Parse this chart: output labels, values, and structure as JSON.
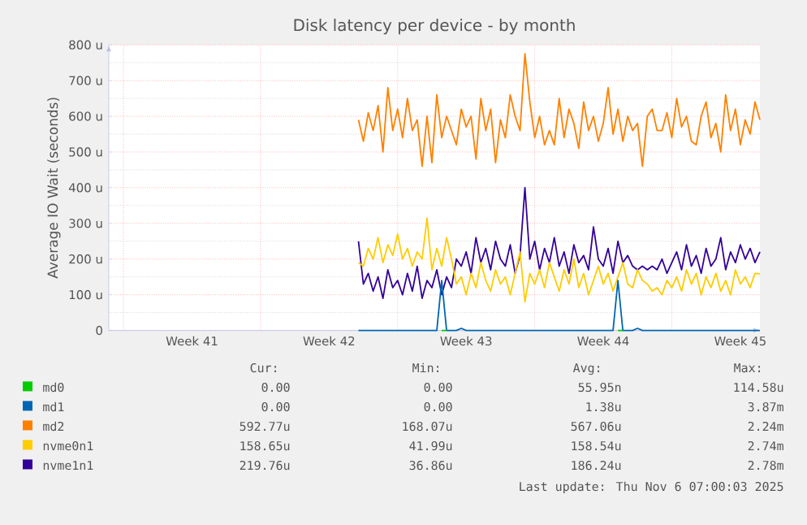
{
  "chart_data": {
    "type": "line",
    "title": "Disk latency per device - by month",
    "ylabel": "Average IO Wait (seconds)",
    "ylim": [
      0,
      800
    ],
    "yticks": [
      0,
      {
        "value": 100,
        "label": "100 u"
      },
      {
        "value": 200,
        "label": "200 u"
      },
      {
        "value": 300,
        "label": "300 u"
      },
      {
        "value": 400,
        "label": "400 u"
      },
      {
        "value": 500,
        "label": "500 u"
      },
      {
        "value": 600,
        "label": "600 u"
      },
      {
        "value": 700,
        "label": "700 u"
      },
      {
        "value": 800,
        "label": "800 u"
      }
    ],
    "grid": true,
    "legend": "bottom",
    "categories": [
      null,
      null,
      null,
      null,
      null,
      null,
      null,
      null,
      null,
      null,
      null,
      null,
      null,
      null,
      null,
      null,
      null,
      "Week 41",
      null,
      null,
      null,
      null,
      null,
      null,
      null,
      null,
      null,
      null,
      null,
      null,
      null,
      null,
      null,
      null,
      null,
      null,
      null,
      null,
      null,
      null,
      null,
      null,
      null,
      null,
      null,
      "Week 42",
      null,
      null,
      null,
      null,
      null,
      null,
      null,
      null,
      null,
      null,
      null,
      null,
      null,
      null,
      null,
      null,
      null,
      null,
      null,
      null,
      null,
      null,
      null,
      null,
      null,
      null,
      null,
      "Week 43",
      null,
      null,
      null,
      null,
      null,
      null,
      null,
      null,
      null,
      null,
      null,
      null,
      null,
      null,
      null,
      null,
      null,
      null,
      null,
      null,
      null,
      null,
      null,
      null,
      null,
      null,
      null,
      "Week 44",
      null,
      null,
      null,
      null,
      null,
      null,
      null,
      null,
      null,
      null,
      null,
      null,
      null,
      null,
      null,
      null,
      null,
      null,
      null,
      null,
      null,
      null,
      null,
      null,
      null,
      null,
      null,
      "Week 45",
      null,
      null,
      null,
      null
    ],
    "series": [
      {
        "name": "md0",
        "color": "#00cc00",
        "values": [
          null,
          null,
          null,
          null,
          null,
          null,
          null,
          null,
          null,
          null,
          null,
          null,
          null,
          null,
          null,
          null,
          null,
          null,
          null,
          null,
          null,
          null,
          null,
          null,
          null,
          null,
          null,
          null,
          null,
          null,
          null,
          null,
          null,
          null,
          null,
          null,
          null,
          null,
          null,
          null,
          null,
          null,
          null,
          null,
          null,
          null,
          null,
          null,
          null,
          null,
          null,
          null,
          null,
          null,
          null,
          null,
          null,
          null,
          null,
          null,
          null,
          null,
          null,
          null,
          null,
          null,
          null,
          null,
          0,
          0,
          null,
          null,
          null,
          null,
          null,
          null,
          null,
          null,
          null,
          null,
          null,
          null,
          null,
          null,
          null,
          null,
          null,
          null,
          null,
          null,
          null,
          null,
          null,
          null,
          null,
          null,
          null,
          null,
          null,
          null,
          null,
          null,
          null,
          null,
          0,
          0,
          null,
          null,
          null,
          null,
          null,
          null,
          null,
          null,
          null,
          null,
          null,
          null,
          null,
          null,
          null,
          null,
          null,
          null,
          null,
          null,
          null,
          null,
          null,
          null,
          null,
          null,
          null,
          null
        ]
      },
      {
        "name": "md1",
        "color": "#0066b3",
        "values": [
          null,
          null,
          null,
          null,
          null,
          null,
          null,
          null,
          null,
          null,
          null,
          null,
          null,
          null,
          null,
          null,
          null,
          null,
          null,
          null,
          null,
          null,
          null,
          null,
          null,
          null,
          null,
          null,
          null,
          null,
          null,
          null,
          null,
          null,
          null,
          null,
          null,
          null,
          null,
          null,
          null,
          null,
          null,
          null,
          null,
          null,
          null,
          null,
          null,
          null,
          null,
          0,
          0,
          0,
          0,
          0,
          0,
          0,
          0,
          0,
          0,
          0,
          0,
          0,
          0,
          0,
          0,
          0,
          140,
          0,
          0,
          0,
          6,
          0,
          0,
          0,
          0,
          0,
          0,
          0,
          0,
          0,
          0,
          0,
          0,
          0,
          0,
          0,
          0,
          0,
          0,
          0,
          0,
          0,
          0,
          0,
          0,
          0,
          0,
          0,
          0,
          0,
          0,
          0,
          140,
          0,
          0,
          0,
          6,
          0,
          0,
          0,
          0,
          0,
          0,
          0,
          0,
          0,
          0,
          0,
          0,
          0,
          0,
          0,
          0,
          0,
          0,
          0,
          0,
          0,
          0,
          0,
          0,
          0
        ]
      },
      {
        "name": "md2",
        "color": "#ff8000",
        "values": [
          null,
          null,
          null,
          null,
          null,
          null,
          null,
          null,
          null,
          null,
          null,
          null,
          null,
          null,
          null,
          null,
          null,
          null,
          null,
          null,
          null,
          null,
          null,
          null,
          null,
          null,
          null,
          null,
          null,
          null,
          null,
          null,
          null,
          null,
          null,
          null,
          null,
          null,
          null,
          null,
          null,
          null,
          null,
          null,
          null,
          null,
          null,
          null,
          null,
          null,
          null,
          590,
          530,
          610,
          560,
          630,
          500,
          680,
          560,
          620,
          540,
          650,
          560,
          590,
          460,
          600,
          470,
          660,
          540,
          600,
          560,
          520,
          620,
          570,
          600,
          480,
          650,
          560,
          620,
          470,
          590,
          540,
          660,
          600,
          560,
          775,
          640,
          540,
          600,
          520,
          560,
          520,
          650,
          540,
          620,
          580,
          510,
          640,
          560,
          600,
          530,
          580,
          680,
          550,
          620,
          530,
          600,
          560,
          580,
          460,
          600,
          620,
          560,
          560,
          610,
          540,
          650,
          570,
          600,
          530,
          520,
          600,
          640,
          540,
          580,
          500,
          660,
          560,
          620,
          520,
          590,
          550,
          640,
          590
        ]
      },
      {
        "name": "nvme0n1",
        "color": "#ffcc00",
        "values": [
          null,
          null,
          null,
          null,
          null,
          null,
          null,
          null,
          null,
          null,
          null,
          null,
          null,
          null,
          null,
          null,
          null,
          null,
          null,
          null,
          null,
          null,
          null,
          null,
          null,
          null,
          null,
          null,
          null,
          null,
          null,
          null,
          null,
          null,
          null,
          null,
          null,
          null,
          null,
          null,
          null,
          null,
          null,
          null,
          null,
          null,
          null,
          null,
          null,
          null,
          null,
          190,
          180,
          230,
          200,
          260,
          190,
          240,
          210,
          270,
          200,
          230,
          180,
          220,
          200,
          315,
          170,
          230,
          180,
          260,
          200,
          130,
          150,
          100,
          160,
          120,
          190,
          140,
          110,
          170,
          130,
          150,
          100,
          160,
          220,
          80,
          160,
          130,
          170,
          120,
          190,
          150,
          110,
          170,
          130,
          200,
          120,
          160,
          100,
          140,
          180,
          130,
          160,
          110,
          150,
          190,
          130,
          120,
          170,
          140,
          130,
          110,
          120,
          100,
          140,
          120,
          150,
          110,
          170,
          130,
          160,
          100,
          150,
          120,
          160,
          110,
          140,
          100,
          170,
          130,
          150,
          120,
          160,
          158
        ]
      },
      {
        "name": "nvme1n1",
        "color": "#330099",
        "values": [
          null,
          null,
          null,
          null,
          null,
          null,
          null,
          null,
          null,
          null,
          null,
          null,
          null,
          null,
          null,
          null,
          null,
          null,
          null,
          null,
          null,
          null,
          null,
          null,
          null,
          null,
          null,
          null,
          null,
          null,
          null,
          null,
          null,
          null,
          null,
          null,
          null,
          null,
          null,
          null,
          null,
          null,
          null,
          null,
          null,
          null,
          null,
          null,
          null,
          null,
          null,
          250,
          130,
          160,
          110,
          150,
          90,
          170,
          120,
          140,
          100,
          160,
          110,
          180,
          90,
          140,
          120,
          170,
          100,
          150,
          120,
          200,
          180,
          220,
          160,
          260,
          190,
          230,
          170,
          250,
          200,
          180,
          240,
          160,
          210,
          400,
          200,
          250,
          170,
          230,
          190,
          260,
          180,
          220,
          160,
          240,
          190,
          210,
          170,
          290,
          200,
          180,
          230,
          160,
          250,
          190,
          210,
          180,
          170,
          180,
          170,
          180,
          170,
          200,
          160,
          190,
          220,
          170,
          240,
          180,
          210,
          160,
          230,
          180,
          200,
          260,
          170,
          220,
          190,
          240,
          200,
          230,
          190,
          220
        ]
      }
    ],
    "annotations": [
      "Cur:",
      "Min:",
      "Avg:",
      "Max:",
      "0.00",
      "0.00",
      "55.95n",
      "114.58u",
      "0.00",
      "0.00",
      "1.38u",
      "3.87m",
      "592.77u",
      "168.07u",
      "567.06u",
      "2.24m",
      "158.65u",
      "41.99u",
      "158.54u",
      "2.74m",
      "219.76u",
      "36.86u",
      "186.24u",
      "2.78m",
      "Last update: Thu Nov 6 07:00:03 2025"
    ]
  }
}
